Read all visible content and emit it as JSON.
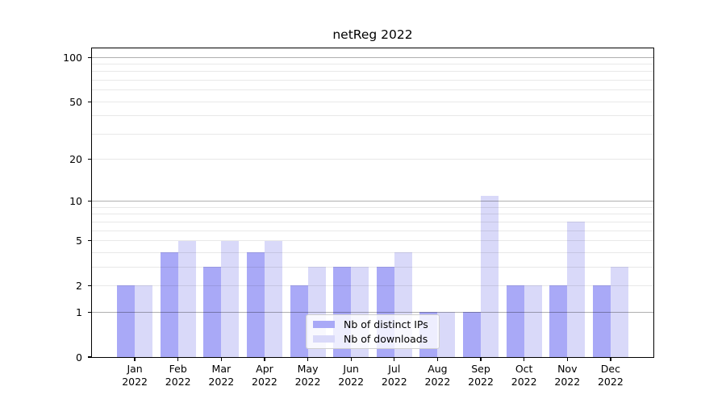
{
  "chart_data": {
    "type": "bar",
    "title": "netReg 2022",
    "categories": [
      "Jan 2022",
      "Feb 2022",
      "Mar 2022",
      "Apr 2022",
      "May 2022",
      "Jun 2022",
      "Jul 2022",
      "Aug 2022",
      "Sep 2022",
      "Oct 2022",
      "Nov 2022",
      "Dec 2022"
    ],
    "series": [
      {
        "name": "Nb of distinct IPs",
        "color": "#a9a9f7",
        "values": [
          2,
          4,
          3,
          4,
          2,
          3,
          3,
          1,
          1,
          2,
          2,
          2
        ]
      },
      {
        "name": "Nb of downloads",
        "color": "#d9d9f9",
        "values": [
          2,
          5,
          5,
          5,
          3,
          3,
          4,
          1,
          11,
          2,
          7,
          3
        ]
      }
    ],
    "yscale": "log1p",
    "ylim": [
      0,
      115
    ],
    "yticks": [
      0,
      1,
      2,
      5,
      10,
      20,
      50,
      100
    ],
    "grid_major": [
      1,
      10,
      100
    ],
    "grid_minor": [
      2,
      3,
      4,
      5,
      6,
      7,
      8,
      9,
      20,
      30,
      40,
      50,
      60,
      70,
      80,
      90
    ],
    "grid": "horizontal",
    "legend_position": "lower center",
    "colors": {
      "grid_major": "rgba(0,0,0,0.31)",
      "grid_minor": "rgba(0,0,0,0.09)",
      "axis": "#000000",
      "background": "#ffffff"
    }
  }
}
